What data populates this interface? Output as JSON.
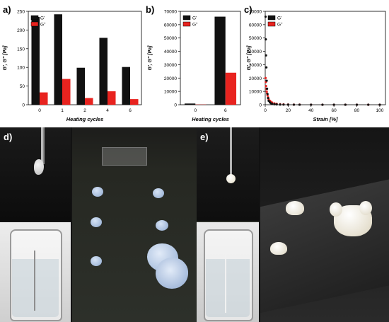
{
  "panels": {
    "a": "a)",
    "b": "b)",
    "c": "c)",
    "d": "d)",
    "e": "e)"
  },
  "colors": {
    "g_prime": "#111111",
    "g_double_prime": "#e8231f",
    "photo_bg": "#141414",
    "board": "#2c2f2a",
    "gel_blue": "#9ab3d6",
    "gel_white": "#eeeae0"
  },
  "chart_data": [
    {
      "type": "bar",
      "categories": [
        "0",
        "1",
        "2",
        "4",
        "6"
      ],
      "series": [
        {
          "name": "G'",
          "values": [
            235,
            242,
            99,
            179,
            101
          ]
        },
        {
          "name": "G''",
          "values": [
            33,
            69,
            18,
            36,
            15
          ]
        }
      ],
      "xlabel": "Heating cycles",
      "ylabel": "G', G'' [Pa]",
      "ylim": [
        0,
        250
      ],
      "yticks": [
        0,
        50,
        100,
        150,
        200,
        250
      ],
      "legend": "top-left"
    },
    {
      "type": "bar",
      "categories": [
        "0",
        "6"
      ],
      "series": [
        {
          "name": "G'",
          "values": [
            900,
            66000
          ]
        },
        {
          "name": "G''",
          "values": [
            150,
            24000
          ]
        }
      ],
      "xlabel": "Heating cycles",
      "ylabel": "G', G'' [Pa]",
      "ylim": [
        0,
        70000
      ],
      "yticks": [
        0,
        10000,
        20000,
        30000,
        40000,
        50000,
        60000,
        70000
      ],
      "legend": "top-left"
    },
    {
      "type": "scatter",
      "series": [
        {
          "name": "G'",
          "x": [
            0.3,
            0.5,
            0.7,
            1,
            1.3,
            1.6,
            2,
            2.5,
            3,
            4,
            5,
            6,
            8,
            10,
            13,
            16,
            20,
            25,
            30,
            40,
            50,
            60,
            70,
            80,
            90,
            100
          ],
          "y": [
            66000,
            49000,
            37000,
            28000,
            18000,
            12000,
            8000,
            5000,
            3000,
            1800,
            1100,
            700,
            400,
            250,
            150,
            100,
            60,
            40,
            30,
            20,
            15,
            12,
            10,
            8,
            6,
            5
          ]
        },
        {
          "name": "G''",
          "x": [
            0.3,
            0.5,
            0.7,
            1,
            1.3,
            1.6,
            2,
            2.5,
            3,
            4,
            5,
            6,
            8,
            10,
            13,
            16,
            20,
            25,
            30,
            40,
            50,
            60,
            70,
            80,
            90,
            100
          ],
          "y": [
            20000,
            17000,
            14000,
            12000,
            10000,
            8500,
            7000,
            5500,
            4200,
            3000,
            2200,
            1600,
            1000,
            700,
            400,
            250,
            150,
            90,
            60,
            40,
            30,
            25,
            20,
            15,
            12,
            10
          ]
        }
      ],
      "xlabel": "Strain [%]",
      "ylabel": "G', G'' [Pa]",
      "xlim": [
        0,
        105
      ],
      "ylim": [
        0,
        70000
      ],
      "xticks": [
        0,
        20,
        40,
        60,
        80,
        100
      ],
      "yticks": [
        0,
        10000,
        20000,
        30000,
        40000,
        50000,
        60000,
        70000
      ],
      "legend": "top-left"
    }
  ]
}
